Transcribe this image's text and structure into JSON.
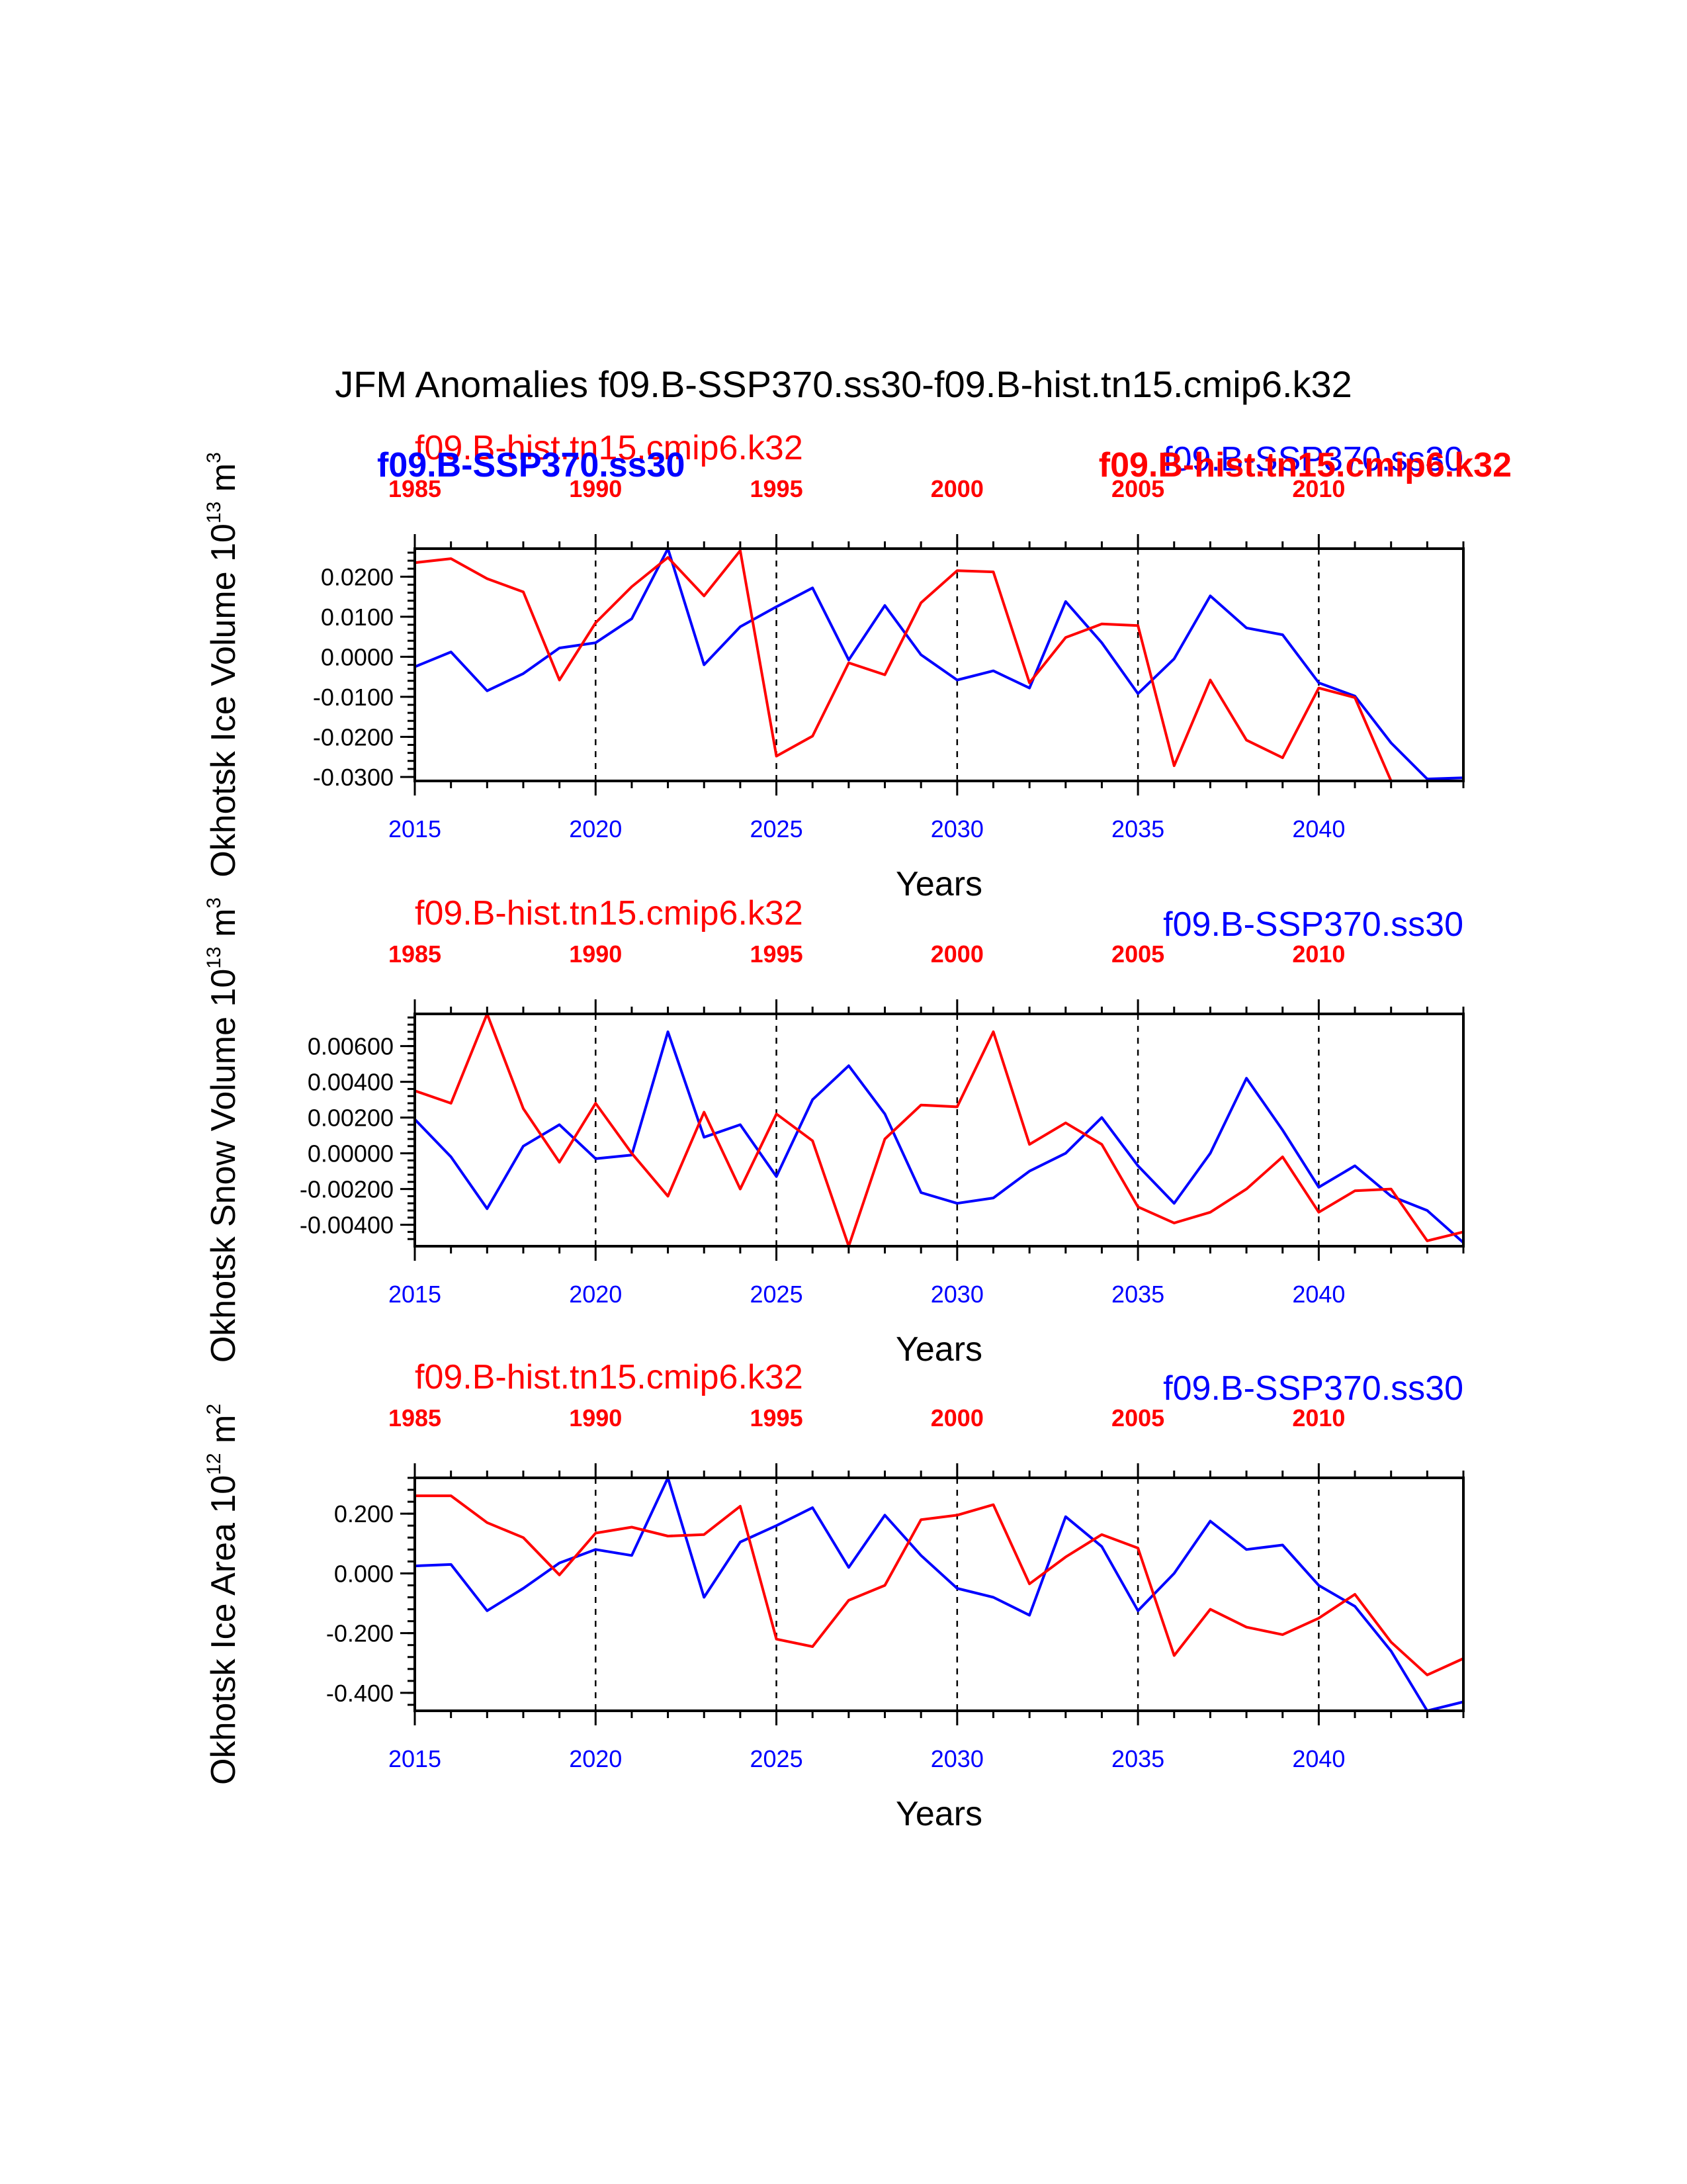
{
  "title": "JFM Anomalies f09.B-SSP370.ss30-f09.B-hist.tn15.cmip6.k32",
  "colors": {
    "ssp": "#0000ff",
    "hist": "#ff0000",
    "axis": "#000000"
  },
  "legend": {
    "hist": "f09.B-hist.tn15.cmip6.k32",
    "ssp": "f09.B-SSP370.ss30"
  },
  "chart_data": [
    {
      "type": "line",
      "ylabel": "Okhotsk Ice Volume",
      "yunit_base": "10",
      "yunit_exp": "13",
      "yunit_tail": "m",
      "yunit_tail_exp": "3",
      "xlabel": "Years",
      "xlim": [
        2015,
        2044
      ],
      "ylim": [
        -0.031,
        0.027
      ],
      "bottom_ticks": [
        2015,
        2020,
        2025,
        2030,
        2035,
        2040
      ],
      "top_ticks": [
        "1985",
        "1990",
        "1995",
        "2000",
        "2005",
        "2010"
      ],
      "yticks": [
        "0.0200",
        "0.0100",
        "0.0000",
        "-0.0100",
        "-0.0200",
        "-0.0300"
      ],
      "ytick_values": [
        0.02,
        0.01,
        0.0,
        -0.01,
        -0.02,
        -0.03
      ],
      "yminor_step": 0.002,
      "x": [
        2015,
        2016,
        2017,
        2018,
        2019,
        2020,
        2021,
        2022,
        2023,
        2024,
        2025,
        2026,
        2027,
        2028,
        2029,
        2030,
        2031,
        2032,
        2033,
        2034,
        2035,
        2036,
        2037,
        2038,
        2039,
        2040,
        2041,
        2042,
        2043,
        2044
      ],
      "series": [
        {
          "name": "f09.B-SSP370.ss30",
          "color": "#0000ff",
          "values": [
            -0.0025,
            0.0012,
            -0.0085,
            -0.0042,
            0.0022,
            0.0035,
            0.0095,
            0.028,
            -0.002,
            0.0075,
            0.0125,
            0.0172,
            -0.0008,
            0.0128,
            0.0005,
            -0.0058,
            -0.0035,
            -0.0078,
            0.0138,
            0.0035,
            -0.0092,
            -0.0005,
            0.0152,
            0.0072,
            0.0055,
            -0.0065,
            -0.0098,
            -0.0215,
            -0.0305,
            -0.0302
          ]
        },
        {
          "name": "f09.B-hist.tn15.cmip6.k32",
          "color": "#ff0000",
          "values": [
            0.0235,
            0.0245,
            0.0195,
            0.0162,
            -0.0058,
            0.0085,
            0.0175,
            0.0248,
            0.0152,
            0.0265,
            -0.0248,
            -0.0198,
            -0.0015,
            -0.0045,
            0.0135,
            0.0215,
            0.0212,
            -0.0065,
            0.0048,
            0.0082,
            0.0078,
            -0.0272,
            -0.0058,
            -0.0208,
            -0.0252,
            -0.0078,
            -0.0102,
            -0.031,
            -0.031,
            -0.031
          ]
        }
      ],
      "overlap_labels": true
    },
    {
      "type": "line",
      "ylabel": "Okhotsk Snow Volume",
      "yunit_base": "10",
      "yunit_exp": "13",
      "yunit_tail": "m",
      "yunit_tail_exp": "3",
      "xlabel": "Years",
      "xlim": [
        2015,
        2044
      ],
      "ylim": [
        -0.0052,
        0.0078
      ],
      "bottom_ticks": [
        2015,
        2020,
        2025,
        2030,
        2035,
        2040
      ],
      "top_ticks": [
        "1985",
        "1990",
        "1995",
        "2000",
        "2005",
        "2010"
      ],
      "yticks": [
        "0.00600",
        "0.00400",
        "0.00200",
        "0.00000",
        "-0.00200",
        "-0.00400"
      ],
      "ytick_values": [
        0.006,
        0.004,
        0.002,
        0.0,
        -0.002,
        -0.004
      ],
      "yminor_step": 0.0004,
      "x": [
        2015,
        2016,
        2017,
        2018,
        2019,
        2020,
        2021,
        2022,
        2023,
        2024,
        2025,
        2026,
        2027,
        2028,
        2029,
        2030,
        2031,
        2032,
        2033,
        2034,
        2035,
        2036,
        2037,
        2038,
        2039,
        2040,
        2041,
        2042,
        2043,
        2044
      ],
      "series": [
        {
          "name": "f09.B-SSP370.ss30",
          "color": "#0000ff",
          "values": [
            0.0019,
            -0.0002,
            -0.0031,
            0.0004,
            0.0016,
            -0.0003,
            -0.0001,
            0.0068,
            0.0009,
            0.0016,
            -0.0013,
            0.003,
            0.0049,
            0.0022,
            -0.0022,
            -0.0028,
            -0.0025,
            -0.001,
            0.0,
            0.002,
            -0.0007,
            -0.0028,
            0.0,
            0.0042,
            0.0013,
            -0.0019,
            -0.0007,
            -0.0024,
            -0.0032,
            -0.005
          ]
        },
        {
          "name": "f09.B-hist.tn15.cmip6.k32",
          "color": "#ff0000",
          "values": [
            0.0035,
            0.0028,
            0.0078,
            0.0025,
            -0.0005,
            0.0028,
            0.0,
            -0.0024,
            0.0023,
            -0.002,
            0.0022,
            0.0007,
            -0.0052,
            0.0008,
            0.0027,
            0.0026,
            0.0068,
            0.0005,
            0.0017,
            0.0005,
            -0.003,
            -0.0039,
            -0.0033,
            -0.002,
            -0.0002,
            -0.0033,
            -0.0021,
            -0.002,
            -0.0049,
            -0.0044
          ]
        }
      ],
      "overlap_labels": false
    },
    {
      "type": "line",
      "ylabel": "Okhotsk Ice Area",
      "yunit_base": "10",
      "yunit_exp": "12",
      "yunit_tail": "m",
      "yunit_tail_exp": "2",
      "xlabel": "Years",
      "xlim": [
        2015,
        2044
      ],
      "ylim": [
        -0.46,
        0.32
      ],
      "bottom_ticks": [
        2015,
        2020,
        2025,
        2030,
        2035,
        2040
      ],
      "top_ticks": [
        "1985",
        "1990",
        "1995",
        "2000",
        "2005",
        "2010"
      ],
      "yticks": [
        "0.200",
        "0.000",
        "-0.200",
        "-0.400"
      ],
      "ytick_values": [
        0.2,
        0.0,
        -0.2,
        -0.4
      ],
      "yminor_step": 0.04,
      "x": [
        2015,
        2016,
        2017,
        2018,
        2019,
        2020,
        2021,
        2022,
        2023,
        2024,
        2025,
        2026,
        2027,
        2028,
        2029,
        2030,
        2031,
        2032,
        2033,
        2034,
        2035,
        2036,
        2037,
        2038,
        2039,
        2040,
        2041,
        2042,
        2043,
        2044
      ],
      "series": [
        {
          "name": "f09.B-SSP370.ss30",
          "color": "#0000ff",
          "values": [
            0.025,
            0.03,
            -0.125,
            -0.05,
            0.035,
            0.08,
            0.06,
            0.32,
            -0.08,
            0.105,
            0.16,
            0.22,
            0.02,
            0.195,
            0.06,
            -0.05,
            -0.08,
            -0.14,
            0.19,
            0.09,
            -0.125,
            0.0,
            0.175,
            0.08,
            0.095,
            -0.04,
            -0.11,
            -0.26,
            -0.46,
            -0.43
          ]
        },
        {
          "name": "f09.B-hist.tn15.cmip6.k32",
          "color": "#ff0000",
          "values": [
            0.26,
            0.26,
            0.17,
            0.12,
            -0.005,
            0.135,
            0.155,
            0.125,
            0.13,
            0.225,
            -0.22,
            -0.245,
            -0.09,
            -0.04,
            0.18,
            0.195,
            0.23,
            -0.035,
            0.055,
            0.13,
            0.085,
            -0.275,
            -0.12,
            -0.18,
            -0.205,
            -0.15,
            -0.07,
            -0.23,
            -0.34,
            -0.285
          ]
        }
      ],
      "overlap_labels": false
    }
  ]
}
